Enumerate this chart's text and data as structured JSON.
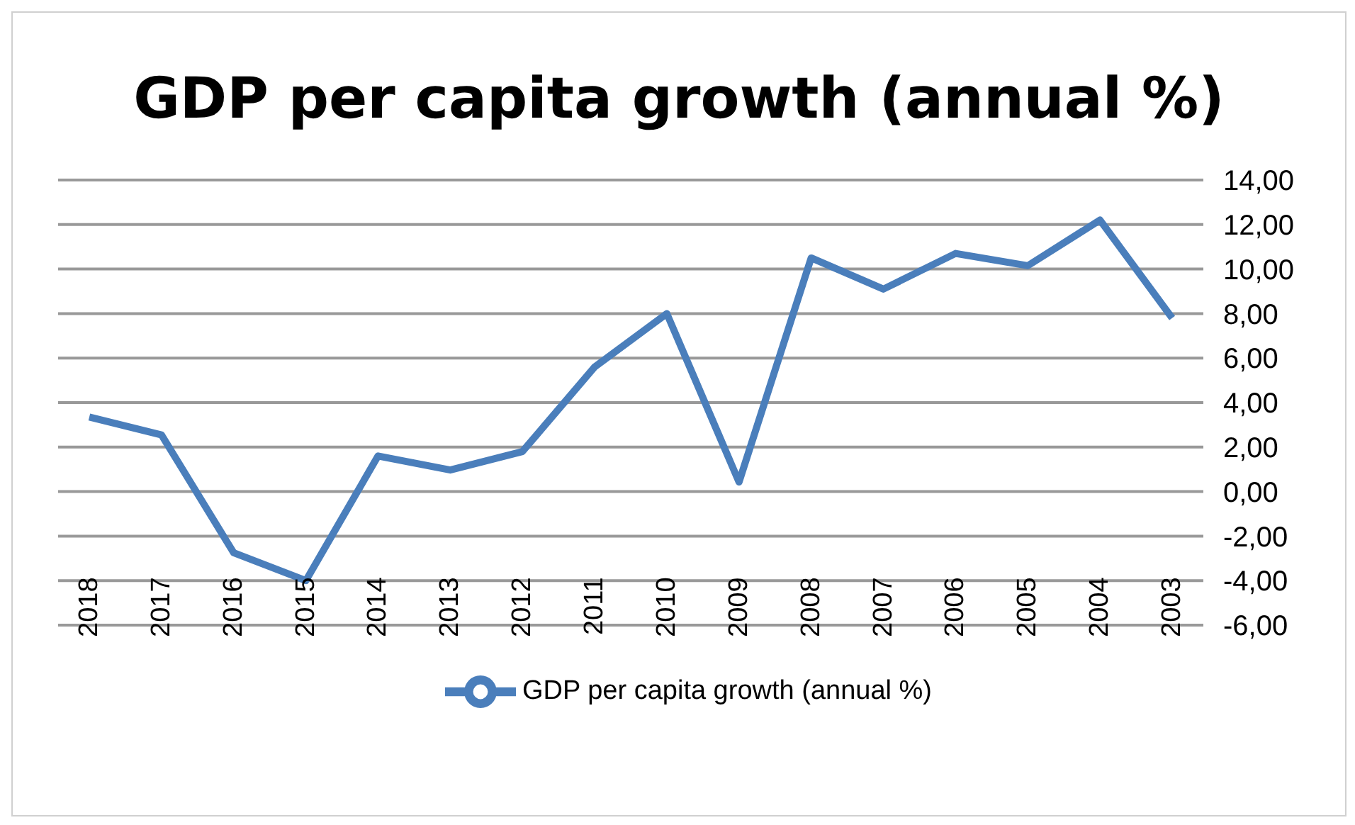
{
  "chart_data": {
    "type": "line",
    "title": "GDP per capita growth (annual %)",
    "categories": [
      "2018",
      "2017",
      "2016",
      "2015",
      "2014",
      "2013",
      "2012",
      "2011",
      "2010",
      "2009",
      "2008",
      "2007",
      "2006",
      "2005",
      "2004",
      "2003"
    ],
    "series": [
      {
        "name": "GDP per capita growth (annual %)",
        "color": "#4a7ebb",
        "values": [
          3.35,
          2.55,
          -2.75,
          -4.0,
          1.6,
          0.97,
          1.8,
          5.6,
          8.0,
          0.43,
          10.5,
          9.1,
          10.7,
          10.15,
          12.2,
          7.8
        ]
      }
    ],
    "ylim": [
      -6,
      14
    ],
    "yticks": [
      {
        "value": -6,
        "label": "-6,00"
      },
      {
        "value": -4,
        "label": "-4,00"
      },
      {
        "value": -2,
        "label": "-2,00"
      },
      {
        "value": 0,
        "label": "0,00"
      },
      {
        "value": 2,
        "label": "2,00"
      },
      {
        "value": 4,
        "label": "4,00"
      },
      {
        "value": 6,
        "label": "6,00"
      },
      {
        "value": 8,
        "label": "8,00"
      },
      {
        "value": 10,
        "label": "10,00"
      },
      {
        "value": 12,
        "label": "12,00"
      },
      {
        "value": 14,
        "label": "14,00"
      }
    ],
    "grid": "y",
    "legend": "bottom",
    "marker": "none",
    "line_style": "solid"
  }
}
